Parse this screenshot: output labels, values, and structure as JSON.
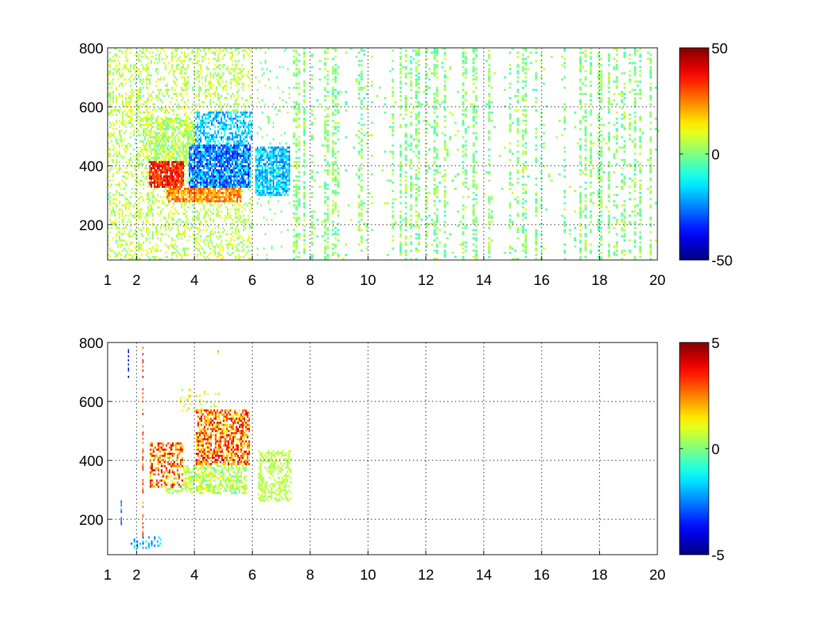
{
  "chart_data": [
    {
      "type": "heatmap",
      "title": "",
      "xlabel": "",
      "ylabel": "",
      "xlim": [
        1,
        20
      ],
      "ylim": [
        80,
        800
      ],
      "x_ticks": [
        "1",
        "2",
        "4",
        "6",
        "8",
        "10",
        "12",
        "14",
        "16",
        "18",
        "20"
      ],
      "y_ticks": [
        "200",
        "400",
        "600",
        "800"
      ],
      "grid": true,
      "colormap": "jet",
      "colorbar": {
        "min": -50,
        "max": 50,
        "ticks": [
          "50",
          "0",
          "-50"
        ]
      },
      "features": [
        {
          "region": "x 2.5-3.5, y 330-400",
          "value": 40
        },
        {
          "region": "x 3.2-5.5, y 280-320",
          "value": 25
        },
        {
          "region": "x 4-5.8, y 320-450",
          "value": -25
        },
        {
          "region": "x 6.2-7.2, y 300-450",
          "value": -20
        },
        {
          "region": "x 7.5-20, y 80-800 (sparse vertical streaks)",
          "value": 0
        }
      ]
    },
    {
      "type": "heatmap",
      "title": "",
      "xlabel": "",
      "ylabel": "",
      "xlim": [
        1,
        20
      ],
      "ylim": [
        80,
        800
      ],
      "x_ticks": [
        "1",
        "2",
        "4",
        "6",
        "8",
        "10",
        "12",
        "14",
        "16",
        "18",
        "20"
      ],
      "y_ticks": [
        "200",
        "400",
        "600",
        "800"
      ],
      "grid": true,
      "colormap": "jet",
      "colorbar": {
        "min": -5,
        "max": 5,
        "ticks": [
          "5",
          "0",
          "-5"
        ]
      },
      "features": [
        {
          "region": "x 2.5-3.5, y 300-450",
          "value": 2.5
        },
        {
          "region": "x 4-5.9, y 380-560",
          "value": 2.5
        },
        {
          "region": "x 3-5.8, y 280-380",
          "value": 1
        },
        {
          "region": "x 6.2-7.2, y 260-420",
          "value": 0.5
        },
        {
          "region": "x 1.4-2.2, y 100-790 (isolated streaks)",
          "value": -2
        }
      ]
    }
  ]
}
